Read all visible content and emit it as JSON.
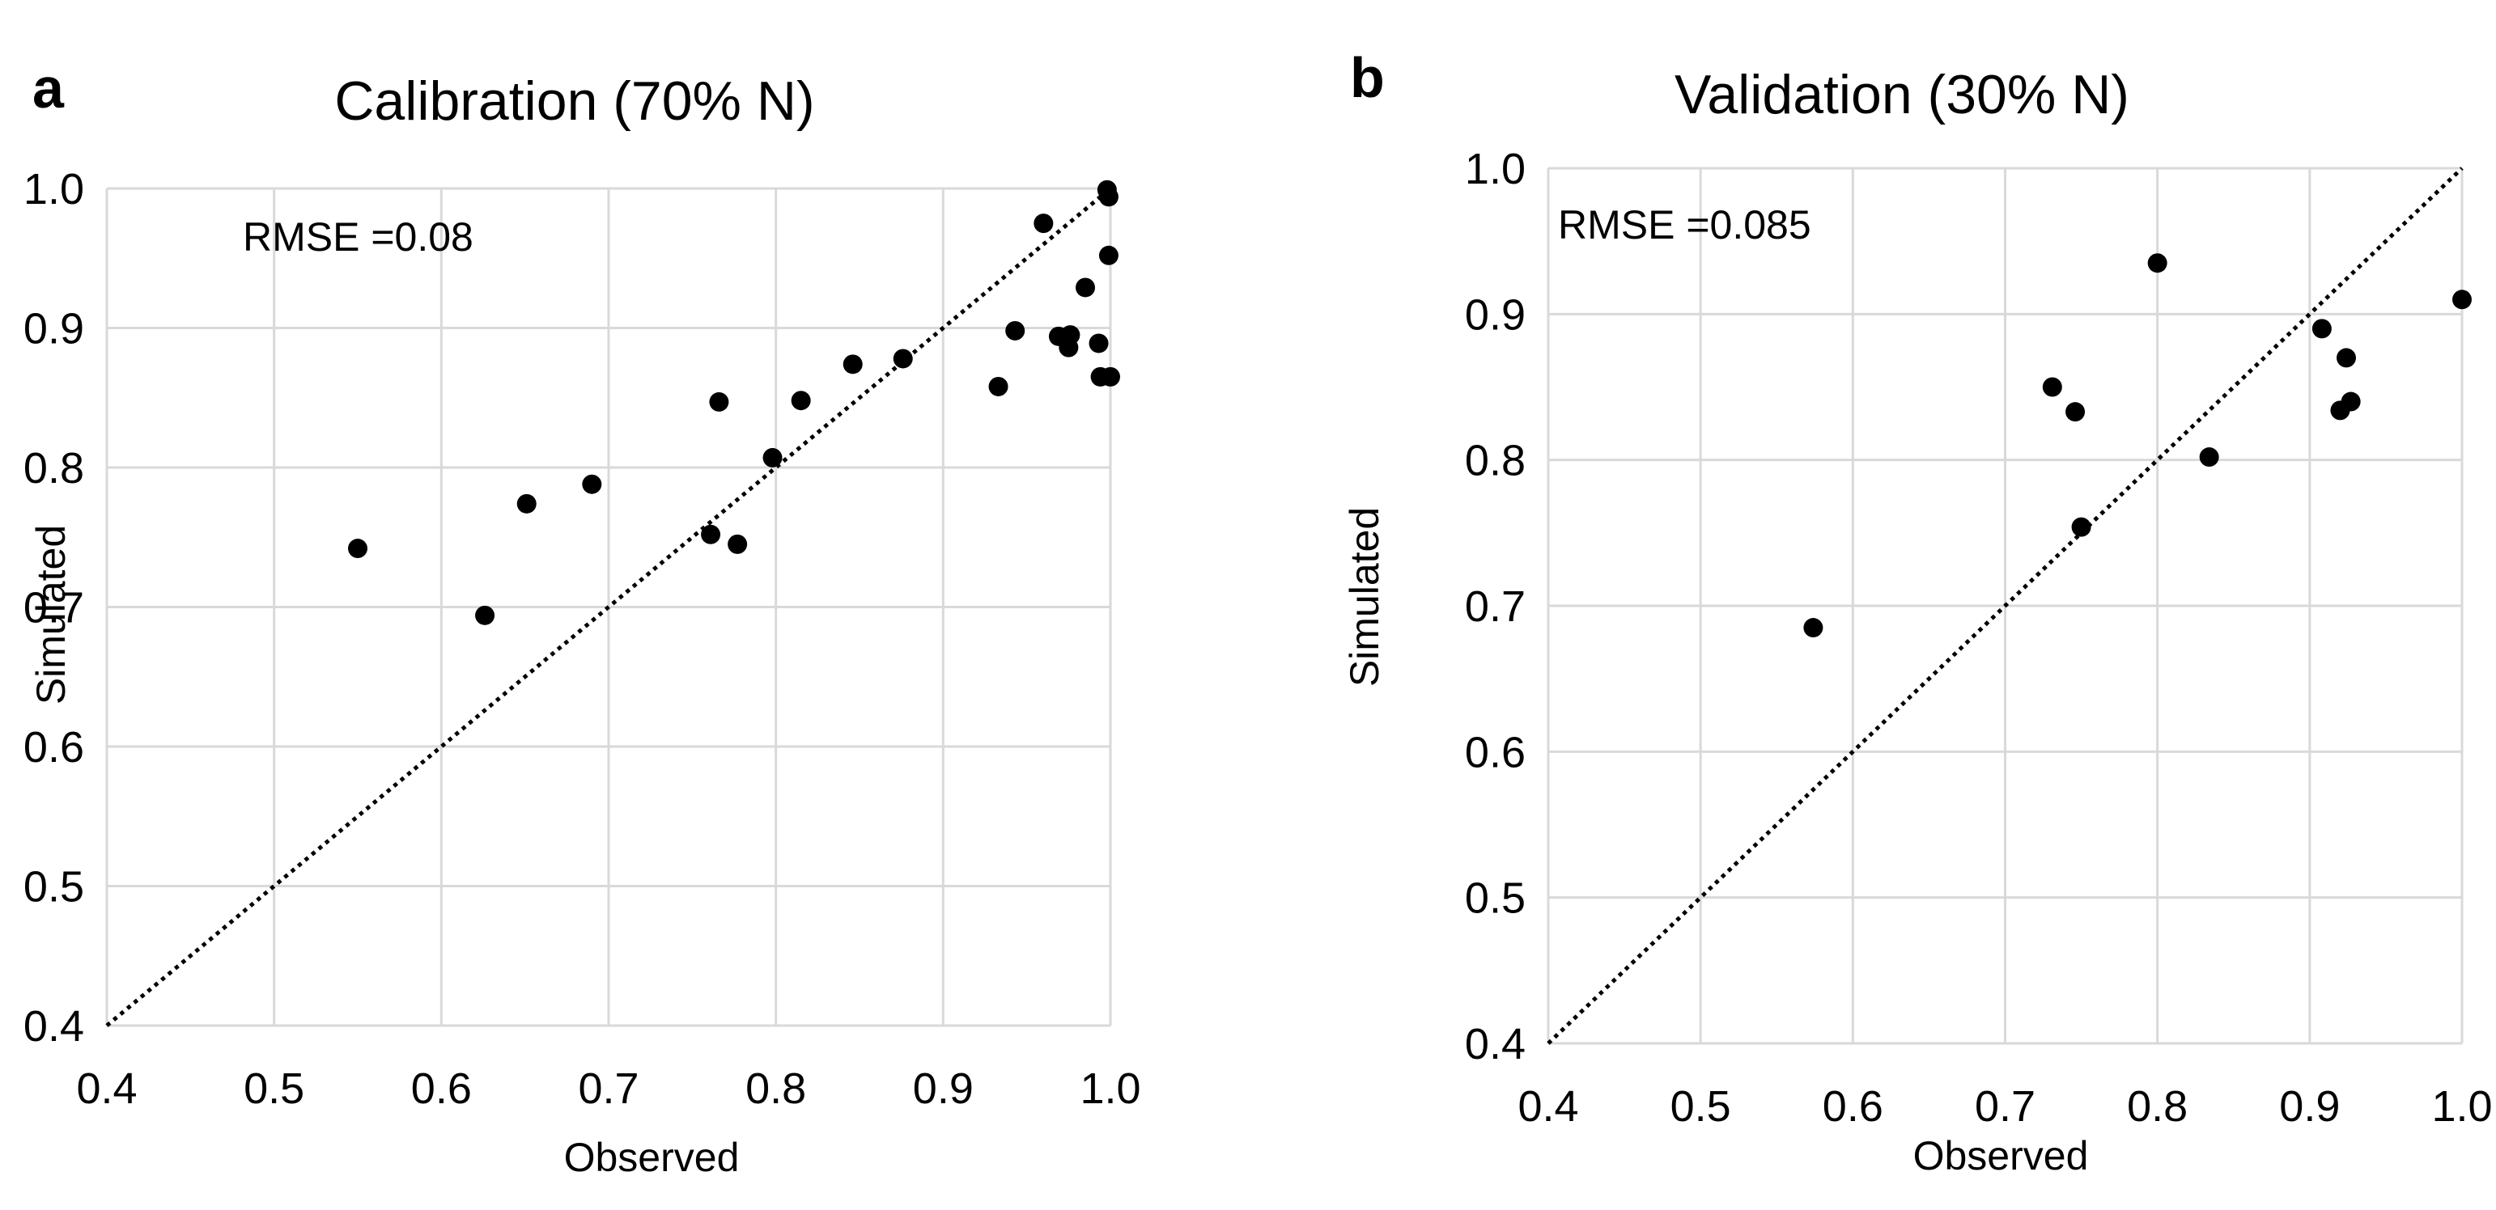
{
  "chart_data": [
    {
      "type": "scatter",
      "panel_label": "a",
      "title": "Calibration (70% N)",
      "xlabel": "Observed",
      "ylabel": "Simulated",
      "xlim": [
        0.4,
        1.0
      ],
      "ylim": [
        0.4,
        1.0
      ],
      "x_ticks": [
        "0.4",
        "0.5",
        "0.6",
        "0.7",
        "0.8",
        "0.9",
        "1.0"
      ],
      "y_ticks": [
        "0.4",
        "0.5",
        "0.6",
        "0.7",
        "0.8",
        "0.9",
        "1.0"
      ],
      "grid": true,
      "reference_line": "1:1 dotted",
      "annotation": "RMSE =0.08",
      "points": [
        {
          "x": 0.55,
          "y": 0.742
        },
        {
          "x": 0.626,
          "y": 0.694
        },
        {
          "x": 0.651,
          "y": 0.774
        },
        {
          "x": 0.69,
          "y": 0.788
        },
        {
          "x": 0.761,
          "y": 0.752
        },
        {
          "x": 0.766,
          "y": 0.847
        },
        {
          "x": 0.777,
          "y": 0.745
        },
        {
          "x": 0.798,
          "y": 0.807
        },
        {
          "x": 0.815,
          "y": 0.848
        },
        {
          "x": 0.846,
          "y": 0.874
        },
        {
          "x": 0.876,
          "y": 0.878
        },
        {
          "x": 0.933,
          "y": 0.858
        },
        {
          "x": 0.943,
          "y": 0.898
        },
        {
          "x": 0.96,
          "y": 0.975
        },
        {
          "x": 0.969,
          "y": 0.894
        },
        {
          "x": 0.975,
          "y": 0.886
        },
        {
          "x": 0.976,
          "y": 0.895
        },
        {
          "x": 0.985,
          "y": 0.929
        },
        {
          "x": 0.993,
          "y": 0.889
        },
        {
          "x": 0.994,
          "y": 0.865
        },
        {
          "x": 0.998,
          "y": 0.999
        },
        {
          "x": 0.999,
          "y": 0.994
        },
        {
          "x": 0.999,
          "y": 0.952
        },
        {
          "x": 1.0,
          "y": 0.865
        }
      ]
    },
    {
      "type": "scatter",
      "panel_label": "b",
      "title": "Validation (30% N)",
      "xlabel": "Observed",
      "ylabel": "Simulated",
      "xlim": [
        0.4,
        1.0
      ],
      "ylim": [
        0.4,
        1.0
      ],
      "x_ticks": [
        "0.4",
        "0.5",
        "0.6",
        "0.7",
        "0.8",
        "0.9",
        "1.0"
      ],
      "y_ticks": [
        "0.4",
        "0.5",
        "0.6",
        "0.7",
        "0.8",
        "0.9",
        "1.0"
      ],
      "grid": true,
      "reference_line": "1:1 dotted",
      "annotation": "RMSE =0.085",
      "points": [
        {
          "x": 0.574,
          "y": 0.685
        },
        {
          "x": 0.731,
          "y": 0.85
        },
        {
          "x": 0.746,
          "y": 0.833
        },
        {
          "x": 0.75,
          "y": 0.754
        },
        {
          "x": 0.8,
          "y": 0.935
        },
        {
          "x": 0.834,
          "y": 0.802
        },
        {
          "x": 0.908,
          "y": 0.89
        },
        {
          "x": 0.92,
          "y": 0.834
        },
        {
          "x": 0.924,
          "y": 0.87
        },
        {
          "x": 0.927,
          "y": 0.84
        },
        {
          "x": 1.0,
          "y": 0.91
        }
      ]
    }
  ]
}
